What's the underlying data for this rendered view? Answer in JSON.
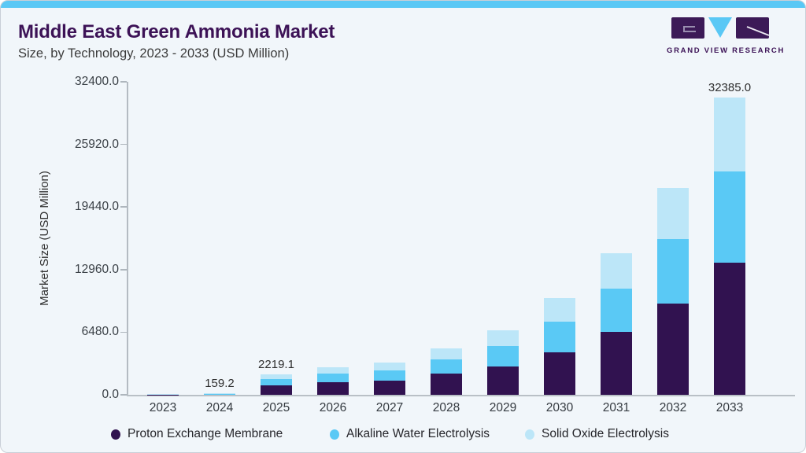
{
  "header": {
    "title": "Middle East Green Ammonia Market",
    "subtitle": "Size, by Technology, 2023 - 2033 (USD Million)",
    "logo_text": "GRAND VIEW RESEARCH"
  },
  "colors": {
    "accent_strip": "#5ac8f5",
    "title_text": "#3c1256",
    "card_background": "#f1f6fa",
    "logo_purple": "#3c1a57",
    "logo_blue": "#5ac8f5"
  },
  "chart_data": {
    "type": "bar",
    "stacked": true,
    "title": "Middle East Green Ammonia Market Size, by Technology, 2023 - 2033 (USD Million)",
    "xlabel": "",
    "ylabel": "Market Size (USD Million)",
    "ylim": [
      0,
      32400
    ],
    "yticks": [
      0,
      6480,
      12960,
      19440,
      25920,
      32400
    ],
    "ytick_labels": [
      "0.0",
      "6480.0",
      "12960.0",
      "19440.0",
      "25920.0",
      "32400.0"
    ],
    "categories": [
      "2023",
      "2024",
      "2025",
      "2026",
      "2027",
      "2028",
      "2029",
      "2030",
      "2031",
      "2032",
      "2033"
    ],
    "series": [
      {
        "name": "Proton Exchange Membrane",
        "color": "#311250",
        "values": [
          35,
          70,
          990,
          1340,
          1540,
          2310,
          3085,
          4625,
          6855,
          9940,
          14390
        ]
      },
      {
        "name": "Alkaline Water Electrolysis",
        "color": "#5ac9f5",
        "values": [
          28,
          52,
          740,
          985,
          1115,
          1540,
          2230,
          3340,
          4710,
          7025,
          9940
        ]
      },
      {
        "name": "Solid Oxide Electrolysis",
        "color": "#bce6f8",
        "values": [
          22,
          37.2,
          489.1,
          675,
          855,
          1200,
          1710,
          2570,
          3855,
          5565,
          8055
        ]
      }
    ],
    "bar_labels": {
      "2024": "159.2",
      "2025": "2219.1",
      "2033": "32385.0"
    },
    "grid": false,
    "legend_position": "bottom"
  }
}
